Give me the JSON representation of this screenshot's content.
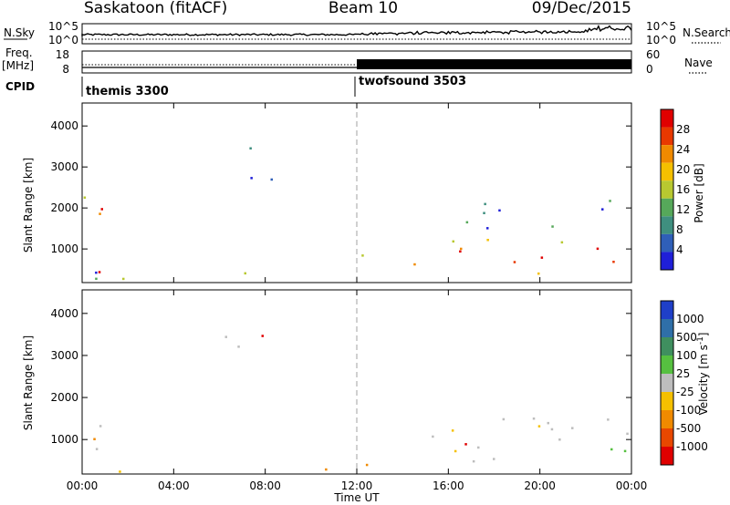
{
  "header": {
    "station": "Saskatoon (fitACF)",
    "beam": "Beam 10",
    "date": "09/Dec/2015"
  },
  "panels": {
    "nsky_label": "N.Sky",
    "nsearch_label": "N.Search",
    "nsky_ticks": [
      "10^5",
      "10^0"
    ],
    "nsearch_ticks": [
      "10^5",
      "10^0"
    ],
    "freq_label": "Freq.",
    "freq_unit": "[MHz]",
    "freq_ticks": [
      "18",
      "8"
    ],
    "nave_label": "Nave",
    "nave_ticks": [
      "60",
      "0"
    ],
    "cpid_label": "CPID",
    "cpid_segments": [
      {
        "name": "themis 3300",
        "start_hour": 0
      },
      {
        "name": "twofsound 3503",
        "start_hour": 12
      }
    ]
  },
  "colors": {
    "power_scale": [
      "#1f1fd8",
      "#2f5fb8",
      "#3f8f7f",
      "#56a85a",
      "#b8c830",
      "#f5c000",
      "#f08a00",
      "#e83800",
      "#e00000"
    ],
    "velocity_scale": [
      "#1f3fc8",
      "#2f6fa8",
      "#3f8f5f",
      "#56c040",
      "#bdbdbd",
      "#f5c000",
      "#f08a00",
      "#e84800",
      "#e00000"
    ],
    "ground_scatter": "#bdbdbd",
    "dashed_marker": "#a0a0a0"
  },
  "chart_data": [
    {
      "type": "heatmap",
      "title": "Power",
      "xlabel": "",
      "ylabel": "Slant Range [km]",
      "x_ticks": [
        "00:00",
        "04:00",
        "08:00",
        "12:00",
        "16:00",
        "20:00",
        "00:00"
      ],
      "xlim_hours": [
        0,
        24
      ],
      "y_ticks": [
        "1000",
        "2000",
        "3000",
        "4000"
      ],
      "ylim": [
        180,
        4560
      ],
      "colorbar_label": "Power [dB]",
      "colorbar_ticks": [
        "28",
        "24",
        "20",
        "16",
        "12",
        "8",
        "4"
      ],
      "scatter_regions": [
        {
          "t_start": 0.0,
          "t_end": 1.6,
          "r_start": 400,
          "r_end": 2400,
          "level": "high"
        },
        {
          "t_start": 0.5,
          "t_end": 12.0,
          "r_start": 180,
          "r_end": 500,
          "level": "mixed"
        },
        {
          "t_start": 6.2,
          "t_end": 9.6,
          "r_start": 2700,
          "r_end": 3500,
          "level": "low"
        },
        {
          "t_start": 12.0,
          "t_end": 14.8,
          "r_start": 400,
          "r_end": 1000,
          "level": "medium"
        },
        {
          "t_start": 14.8,
          "t_end": 24.0,
          "r_start": 400,
          "r_end": 1400,
          "level": "high"
        },
        {
          "t_start": 15.0,
          "t_end": 24.0,
          "r_start": 1400,
          "r_end": 2200,
          "level": "low"
        }
      ]
    },
    {
      "type": "heatmap",
      "title": "Velocity",
      "xlabel": "Time UT",
      "ylabel": "Slant Range [km]",
      "x_ticks": [
        "00:00",
        "04:00",
        "08:00",
        "12:00",
        "16:00",
        "20:00",
        "00:00"
      ],
      "xlim_hours": [
        0,
        24
      ],
      "y_ticks": [
        "1000",
        "2000",
        "3000",
        "4000"
      ],
      "ylim": [
        180,
        4560
      ],
      "colorbar_label": "Velocity [m s^-1]",
      "colorbar_ticks": [
        "1000",
        "500",
        "100",
        "25",
        "-25",
        "-100",
        "-500",
        "-1000"
      ],
      "scatter_regions": [
        {
          "t_start": 0.0,
          "t_end": 1.8,
          "r_start": 600,
          "r_end": 2300,
          "level": "ground"
        },
        {
          "t_start": 1.5,
          "t_end": 12.5,
          "r_start": 180,
          "r_end": 450,
          "level": "away"
        },
        {
          "t_start": 6.2,
          "t_end": 9.6,
          "r_start": 2700,
          "r_end": 3500,
          "level": "ground"
        },
        {
          "t_start": 12.0,
          "t_end": 24.0,
          "r_start": 400,
          "r_end": 1600,
          "level": "ground"
        },
        {
          "t_start": 22.5,
          "t_end": 24.0,
          "r_start": 400,
          "r_end": 1500,
          "level": "toward"
        }
      ]
    }
  ]
}
